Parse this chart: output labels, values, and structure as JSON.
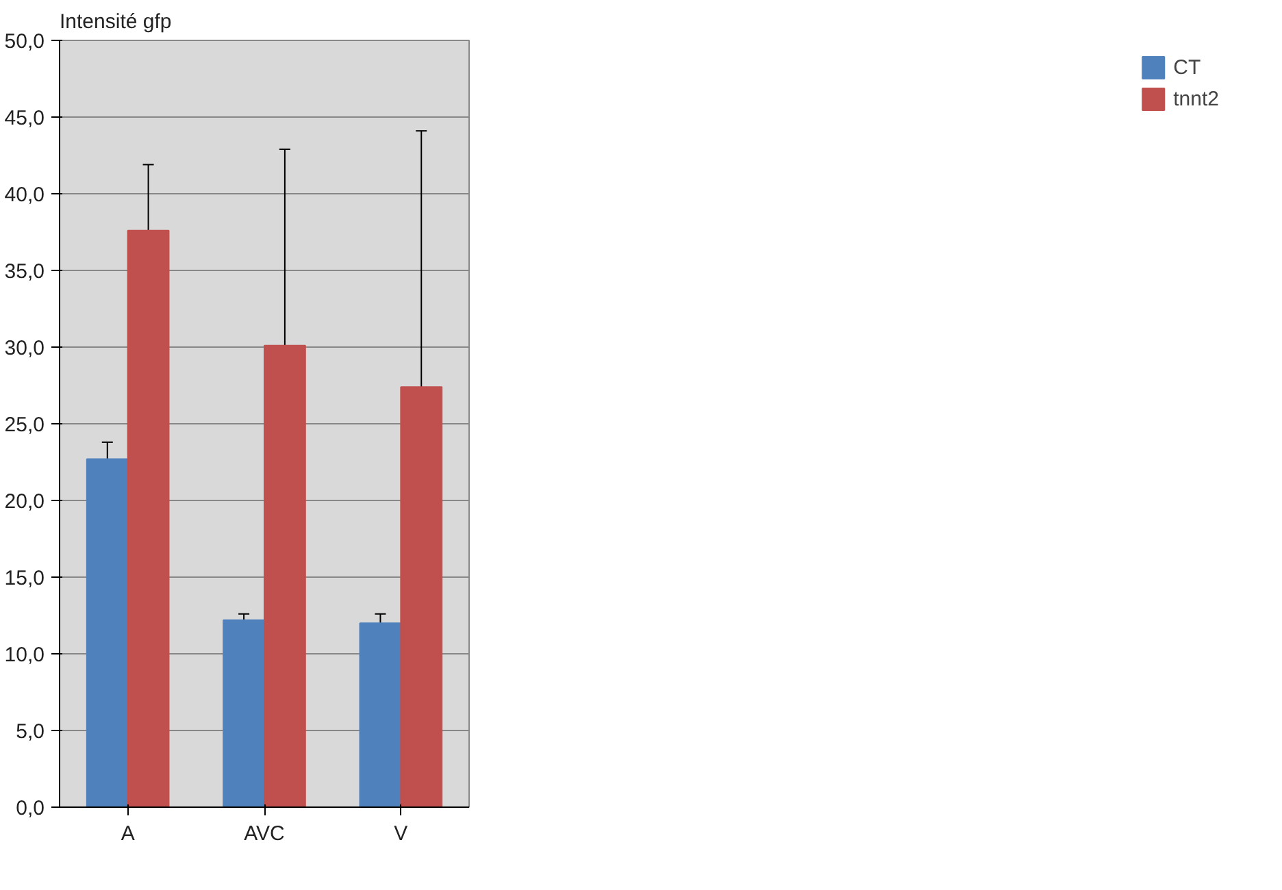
{
  "chart_data": {
    "type": "bar",
    "ylabel": "Intensité gfp",
    "categories": [
      "A",
      "AVC",
      "V"
    ],
    "series": [
      {
        "name": "CT",
        "color": "#4f81bd",
        "values": [
          22.7,
          12.2,
          12.0
        ],
        "errors": [
          1.1,
          0.4,
          0.6
        ]
      },
      {
        "name": "tnnt2",
        "color": "#c0504d",
        "values": [
          37.6,
          30.1,
          27.4
        ],
        "errors": [
          4.3,
          12.8,
          16.7
        ]
      }
    ],
    "ylim": [
      0,
      50
    ],
    "yticks": [
      {
        "value": 0,
        "label": "0,0"
      },
      {
        "value": 5,
        "label": "5,0"
      },
      {
        "value": 10,
        "label": "10,0"
      },
      {
        "value": 15,
        "label": "15,0"
      },
      {
        "value": 20,
        "label": "20,0"
      },
      {
        "value": 25,
        "label": "25,0"
      },
      {
        "value": 30,
        "label": "30,0"
      },
      {
        "value": 35,
        "label": "35,0"
      },
      {
        "value": 40,
        "label": "40,0"
      },
      {
        "value": 45,
        "label": "45,0"
      },
      {
        "value": 50,
        "label": "50,0"
      }
    ],
    "grid": "y",
    "legend": "right"
  }
}
